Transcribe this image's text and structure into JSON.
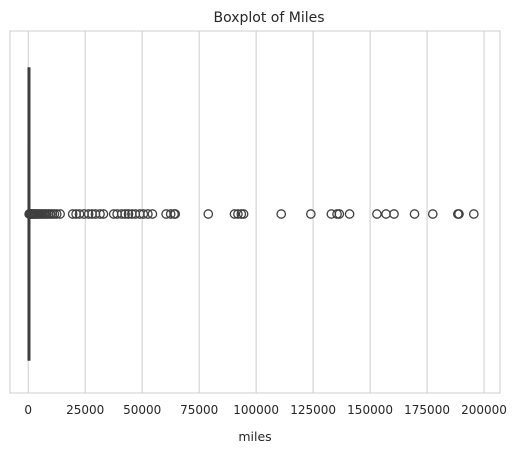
{
  "chart_data": {
    "type": "boxplot",
    "orientation": "horizontal",
    "title": "Boxplot of Miles",
    "xlabel": "miles",
    "ylabel": "",
    "xlim": [
      -8000,
      207000
    ],
    "xticks": [
      0,
      25000,
      50000,
      75000,
      100000,
      125000,
      150000,
      175000,
      200000
    ],
    "xtick_labels": [
      "0",
      "25000",
      "50000",
      "75000",
      "100000",
      "125000",
      "150000",
      "175000",
      "200000"
    ],
    "grid": "x",
    "box": {
      "q1": 0,
      "median": 10,
      "q3": 100,
      "whisker_low": 0,
      "whisker_high": 300
    },
    "outliers": [
      400,
      600,
      800,
      1000,
      1300,
      1600,
      2000,
      2400,
      2800,
      3300,
      3800,
      4300,
      4900,
      5500,
      6100,
      6800,
      7500,
      8200,
      9000,
      9800,
      10600,
      11500,
      12500,
      14000,
      19500,
      21000,
      22500,
      24500,
      26500,
      28000,
      29500,
      31500,
      33000,
      37500,
      39000,
      41000,
      42500,
      44000,
      45500,
      47000,
      49000,
      50500,
      52500,
      54500,
      60500,
      62500,
      64000,
      64500,
      79000,
      90500,
      92000,
      93500,
      94500,
      111000,
      124000,
      133000,
      135500,
      136500,
      141000,
      153000,
      157000,
      160500,
      169500,
      177500,
      188500,
      189000,
      195500
    ]
  }
}
